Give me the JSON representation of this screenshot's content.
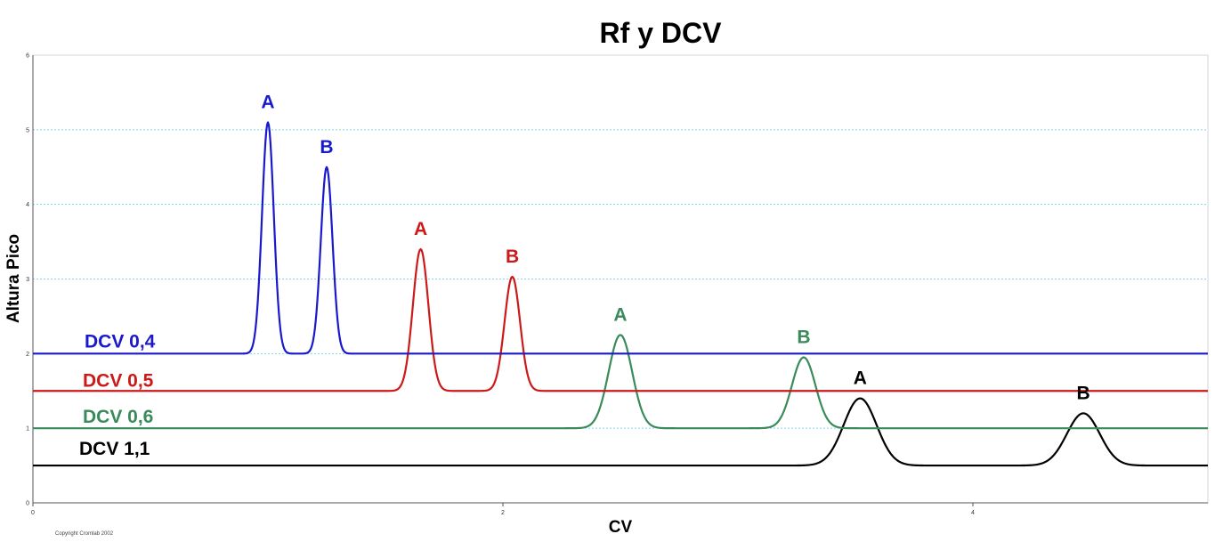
{
  "chart_data": {
    "type": "line",
    "title": "Rf y DCV",
    "xlabel": "CV",
    "ylabel": "Altura Pico",
    "xlim": [
      0,
      5
    ],
    "ylim": [
      0,
      6
    ],
    "x_ticks": [
      "0",
      "2",
      "4"
    ],
    "x_tick_values": [
      0,
      2,
      4
    ],
    "y_ticks": [
      "0",
      "1",
      "2",
      "3",
      "4",
      "5",
      "6"
    ],
    "y_tick_values": [
      0,
      1,
      2,
      3,
      4,
      5,
      6
    ],
    "grid": "horizontal dotted",
    "legend": "inline labels at left",
    "copyright": "Copyright Cromlab 2002",
    "series": [
      {
        "name": "DCV 0,4",
        "color": "#1a1acc",
        "baseline": 2.0,
        "peaks": [
          {
            "label": "A",
            "x": 1.0,
            "y": 5.1,
            "width": 0.025
          },
          {
            "label": "B",
            "x": 1.25,
            "y": 4.5,
            "width": 0.025
          }
        ]
      },
      {
        "name": "DCV 0,5",
        "color": "#cc1a1a",
        "baseline": 1.5,
        "peaks": [
          {
            "label": "A",
            "x": 1.65,
            "y": 3.4,
            "width": 0.033
          },
          {
            "label": "B",
            "x": 2.04,
            "y": 3.03,
            "width": 0.033
          }
        ]
      },
      {
        "name": "DCV 0,6",
        "color": "#3a8a5a",
        "baseline": 1.0,
        "peaks": [
          {
            "label": "A",
            "x": 2.5,
            "y": 2.25,
            "width": 0.05
          },
          {
            "label": "B",
            "x": 3.28,
            "y": 1.95,
            "width": 0.05
          }
        ]
      },
      {
        "name": "DCV 1,1",
        "color": "#000000",
        "baseline": 0.5,
        "peaks": [
          {
            "label": "A",
            "x": 3.52,
            "y": 1.4,
            "width": 0.07
          },
          {
            "label": "B",
            "x": 4.47,
            "y": 1.2,
            "width": 0.07
          }
        ]
      }
    ]
  }
}
